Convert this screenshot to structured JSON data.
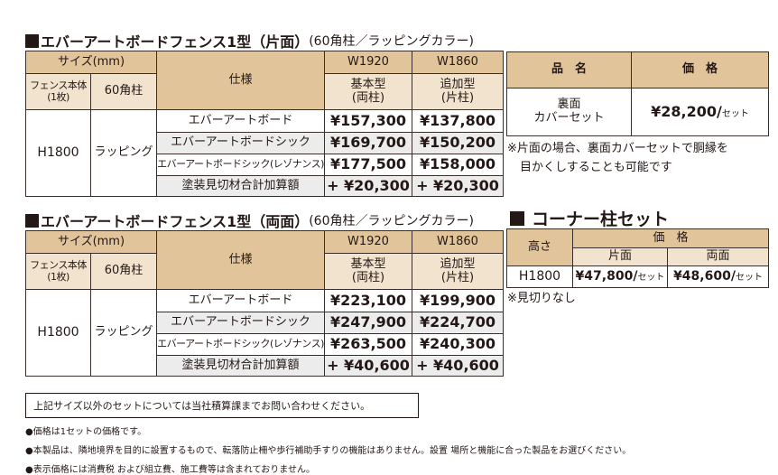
{
  "katamen": {
    "title": "エバーアートボードフェンス1型（片面）",
    "title_sub": "(60角柱／ラッピングカラー)",
    "headers": {
      "size": "サイズ(mm)",
      "fence": "フェンス本体\n(1枚)",
      "fence_l1": "フェンス本体",
      "fence_l2": "(1枚)",
      "post": "60角柱",
      "spec": "仕様",
      "w1": "W1920",
      "w2": "W1860",
      "w1_type": "基本型",
      "w1_sub": "(両柱)",
      "w2_type": "追加型",
      "w2_sub": "(片柱)"
    },
    "height": "H1800",
    "finish": "ラッピング",
    "rows": [
      {
        "spec": "エバーアートボード",
        "w1920": "¥157,300",
        "w1860": "¥137,800"
      },
      {
        "spec": "エバーアートボードシック",
        "w1920": "¥169,700",
        "w1860": "¥150,200"
      },
      {
        "spec": "エバーアートボードシック(レゾナンス)",
        "w1920": "¥177,500",
        "w1860": "¥158,000"
      },
      {
        "spec": "塗装見切材合計加算額",
        "w1920": "+ ¥20,300",
        "w1860": "+ ¥20,300"
      }
    ]
  },
  "ryomen": {
    "title": "エバーアートボードフェンス1型（両面）",
    "title_sub": "(60角柱／ラッピングカラー)",
    "headers": {
      "size": "サイズ(mm)",
      "fence_l1": "フェンス本体",
      "fence_l2": "(1枚)",
      "post": "60角柱",
      "spec": "仕様",
      "w1": "W1920",
      "w2": "W1860",
      "w1_type": "基本型",
      "w1_sub": "(両柱)",
      "w2_type": "追加型",
      "w2_sub": "(片柱)"
    },
    "height": "H1800",
    "finish": "ラッピング",
    "rows": [
      {
        "spec": "エバーアートボード",
        "w1920": "¥223,100",
        "w1860": "¥199,900"
      },
      {
        "spec": "エバーアートボードシック",
        "w1920": "¥247,900",
        "w1860": "¥224,700"
      },
      {
        "spec": "エバーアートボードシック(レゾナンス)",
        "w1920": "¥263,500",
        "w1860": "¥240,300"
      },
      {
        "spec": "塗装見切材合計加算額",
        "w1920": "+ ¥40,600",
        "w1860": "+ ¥40,600"
      }
    ]
  },
  "cover": {
    "h_name": "品　名",
    "h_price": "価　格",
    "name_l1": "裏面",
    "name_l2": "カバーセット",
    "price": "¥28,200/",
    "unit": "セット",
    "note_l1": "※片面の場合、裏面カバーセットで胴縁を",
    "note_l2": "目かくしすることも可能です"
  },
  "corner": {
    "title": "コーナー柱セット",
    "h_height": "高さ",
    "h_price": "価　格",
    "h_single": "片面",
    "h_double": "両面",
    "height": "H1800",
    "single": "¥47,800/",
    "double": "¥48,600/",
    "unit": "セット",
    "note": "※見切りなし"
  },
  "footer": {
    "box": "上記サイズ以外のセットについては当社積算課までお問い合わせください。",
    "bullets": [
      "●価格は1セットの価格です。",
      "●本製品は、隣地境界を目的に設置するもので、転落防止柵や歩行補助手すりの機能はありません。設置 場所と機能に合った製品をお選びください。",
      "●表示価格には消費税 および組立費、施工費等は含まれておりません。"
    ]
  },
  "colors": {
    "header": "#e2c49a",
    "subheader": "#f1e3cd",
    "row_alt": "#ececec"
  }
}
